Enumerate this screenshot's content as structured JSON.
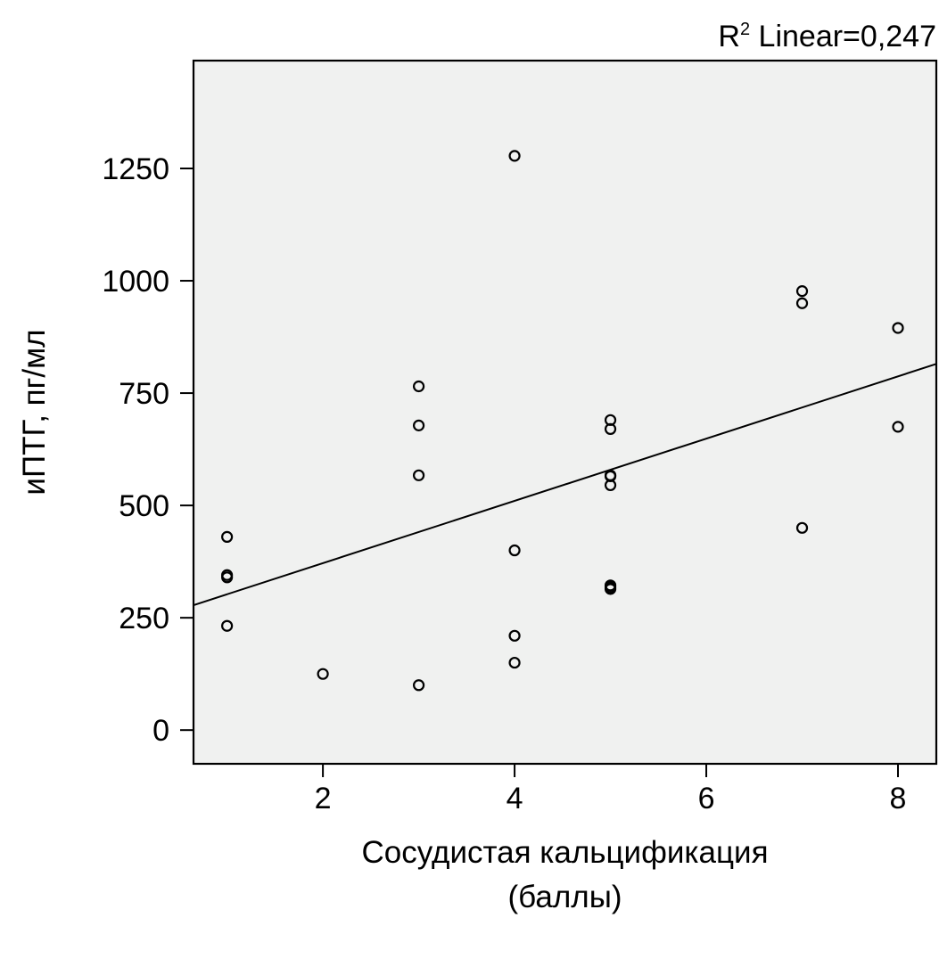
{
  "chart_data": {
    "type": "scatter",
    "title": "",
    "xlabel_lines": [
      "Сосудистая кальцификация",
      "(баллы)"
    ],
    "ylabel": "иПТГ, пг/мл",
    "xlim": [
      0.65,
      8.4
    ],
    "ylim": [
      -75,
      1490
    ],
    "x_ticks": [
      2,
      4,
      6,
      8
    ],
    "y_ticks": [
      0,
      250,
      500,
      750,
      1000,
      1250
    ],
    "plot_background": "#f0f1f0",
    "grid": false,
    "marker": "open-circle",
    "points": [
      {
        "x": 1,
        "y": 430
      },
      {
        "x": 1,
        "y": 345
      },
      {
        "x": 1,
        "y": 340
      },
      {
        "x": 1,
        "y": 232
      },
      {
        "x": 2,
        "y": 125
      },
      {
        "x": 3,
        "y": 765
      },
      {
        "x": 3,
        "y": 678
      },
      {
        "x": 3,
        "y": 567
      },
      {
        "x": 3,
        "y": 100
      },
      {
        "x": 4,
        "y": 1278
      },
      {
        "x": 4,
        "y": 400
      },
      {
        "x": 4,
        "y": 210
      },
      {
        "x": 4,
        "y": 150
      },
      {
        "x": 5,
        "y": 690
      },
      {
        "x": 5,
        "y": 670
      },
      {
        "x": 5,
        "y": 567
      },
      {
        "x": 5,
        "y": 565
      },
      {
        "x": 5,
        "y": 545
      },
      {
        "x": 5,
        "y": 322
      },
      {
        "x": 5,
        "y": 318
      },
      {
        "x": 5,
        "y": 314
      },
      {
        "x": 7,
        "y": 977
      },
      {
        "x": 7,
        "y": 950
      },
      {
        "x": 7,
        "y": 450
      },
      {
        "x": 8,
        "y": 895
      },
      {
        "x": 8,
        "y": 675
      }
    ],
    "fit_line": {
      "type": "linear",
      "from": {
        "x": 0.65,
        "y": 278
      },
      "to": {
        "x": 8.4,
        "y": 815
      },
      "label_prefix": "R",
      "label_sup": "2",
      "label_suffix": " Linear=0,247"
    }
  }
}
